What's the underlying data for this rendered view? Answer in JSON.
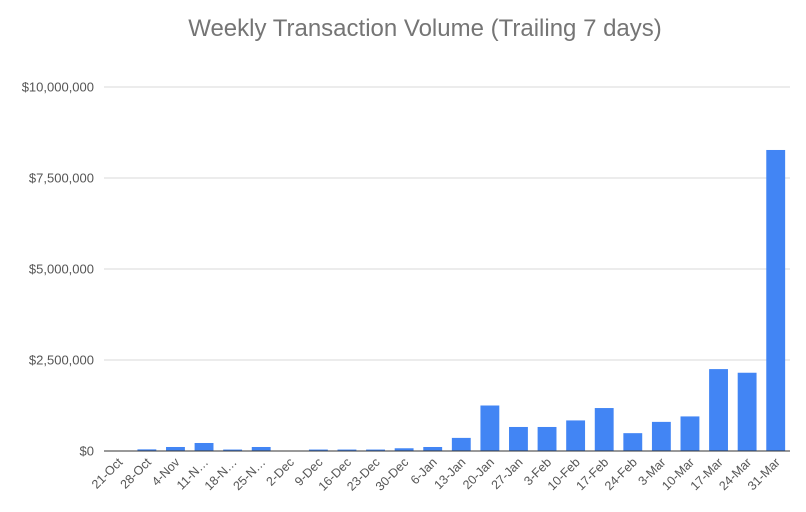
{
  "chart_data": {
    "type": "bar",
    "title": "Weekly Transaction Volume (Trailing 7 days)",
    "xlabel": "",
    "ylabel": "",
    "ylim": [
      0,
      10000000
    ],
    "yticks": [
      0,
      2500000,
      5000000,
      7500000,
      10000000
    ],
    "ytick_labels": [
      "$0",
      "$2,500,000",
      "$5,000,000",
      "$7,500,000",
      "$10,000,000"
    ],
    "grid": true,
    "legend": "none",
    "bar_color": "#4285f4",
    "categories": [
      "21-Oct",
      "28-Oct",
      "4-Nov",
      "11-N…",
      "18-N…",
      "25-N…",
      "2-Dec",
      "9-Dec",
      "16-Dec",
      "23-Dec",
      "30-Dec",
      "6-Jan",
      "13-Jan",
      "20-Jan",
      "27-Jan",
      "3-Feb",
      "10-Feb",
      "17-Feb",
      "24-Feb",
      "3-Mar",
      "10-Mar",
      "17-Mar",
      "24-Mar",
      "31-Mar"
    ],
    "values": [
      10000,
      45000,
      110000,
      220000,
      40000,
      110000,
      10000,
      40000,
      40000,
      40000,
      75000,
      110000,
      360000,
      1250000,
      660000,
      660000,
      840000,
      1180000,
      490000,
      800000,
      950000,
      2250000,
      2150000,
      8270000
    ]
  }
}
